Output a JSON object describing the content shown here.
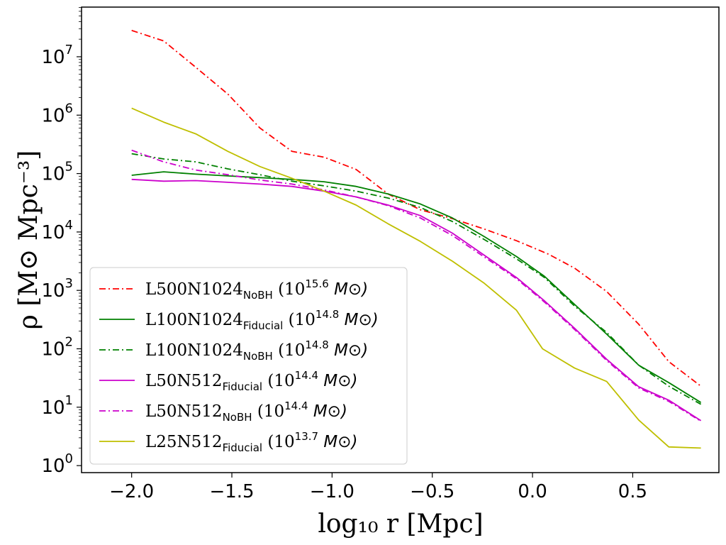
{
  "chart_data": {
    "type": "line",
    "xlabel": "log₁₀ r [Mpc]",
    "ylabel": "ρ [M⊙ Mpc⁻³]",
    "xlim": [
      -2.25,
      0.93
    ],
    "ylim_log10": [
      -0.12,
      7.85
    ],
    "yscale": "log",
    "x_ticks": [
      -2.0,
      -1.5,
      -1.0,
      -0.5,
      0.0,
      0.5
    ],
    "x_tick_labels": [
      "−2.0",
      "−1.5",
      "−1.0",
      "−0.5",
      "0.0",
      "0.5"
    ],
    "y_ticks_log10": [
      0,
      1,
      2,
      3,
      4,
      5,
      6,
      7
    ],
    "y_tick_labels": [
      {
        "base": "10",
        "exp": "0"
      },
      {
        "base": "10",
        "exp": "1"
      },
      {
        "base": "10",
        "exp": "2"
      },
      {
        "base": "10",
        "exp": "3"
      },
      {
        "base": "10",
        "exp": "4"
      },
      {
        "base": "10",
        "exp": "5"
      },
      {
        "base": "10",
        "exp": "6"
      },
      {
        "base": "10",
        "exp": "7"
      }
    ],
    "legend_position": "lower-left",
    "series": [
      {
        "id": "l500n1024-nobh",
        "label_main": "L500N1024",
        "label_sub": "NoBH",
        "label_mass_base": "(10",
        "label_mass_exp": "15.6",
        "label_unit": "M⊙)",
        "color": "#ff0000",
        "style": "dashdot",
        "x": [
          -2.0,
          -1.84,
          -1.68,
          -1.52,
          -1.36,
          -1.2,
          -1.04,
          -0.88,
          -0.72,
          -0.56,
          -0.4,
          -0.24,
          -0.08,
          0.08,
          0.21,
          0.37,
          0.53,
          0.68,
          0.84
        ],
        "log10_y": [
          7.45,
          7.27,
          6.82,
          6.36,
          5.78,
          5.38,
          5.28,
          5.07,
          4.65,
          4.38,
          4.23,
          4.05,
          3.85,
          3.62,
          3.38,
          2.98,
          2.42,
          1.78,
          1.36
        ]
      },
      {
        "id": "l100n1024-fiducial",
        "label_main": "L100N1024",
        "label_sub": "Fiducial",
        "label_mass_base": "(10",
        "label_mass_exp": "14.8",
        "label_unit": "M⊙)",
        "color": "#008000",
        "style": "solid",
        "x": [
          -2.0,
          -1.84,
          -1.68,
          -1.52,
          -1.36,
          -1.2,
          -1.04,
          -0.88,
          -0.72,
          -0.56,
          -0.4,
          -0.24,
          -0.08,
          0.06,
          0.21,
          0.37,
          0.53,
          0.68,
          0.84
        ],
        "log10_y": [
          4.97,
          5.03,
          4.99,
          4.96,
          4.93,
          4.9,
          4.86,
          4.78,
          4.65,
          4.48,
          4.24,
          3.92,
          3.58,
          3.24,
          2.76,
          2.25,
          1.72,
          1.42,
          1.08
        ]
      },
      {
        "id": "l100n1024-nobh",
        "label_main": "L100N1024",
        "label_sub": "NoBH",
        "label_mass_base": "(10",
        "label_mass_exp": "14.8",
        "label_unit": "M⊙)",
        "color": "#008000",
        "style": "dashdot",
        "x": [
          -2.0,
          -1.84,
          -1.68,
          -1.52,
          -1.36,
          -1.2,
          -1.04,
          -0.88,
          -0.72,
          -0.56,
          -0.4,
          -0.24,
          -0.08,
          0.06,
          0.21,
          0.37,
          0.53,
          0.68,
          0.84
        ],
        "log10_y": [
          5.34,
          5.25,
          5.2,
          5.08,
          4.98,
          4.87,
          4.79,
          4.7,
          4.58,
          4.42,
          4.18,
          3.87,
          3.54,
          3.22,
          2.73,
          2.28,
          1.72,
          1.36,
          1.05
        ]
      },
      {
        "id": "l50n512-fiducial",
        "label_main": "L50N512",
        "label_sub": "Fiducial",
        "label_mass_base": "(10",
        "label_mass_exp": "14.4",
        "label_unit": "M⊙)",
        "color": "#cc00cc",
        "style": "solid",
        "x": [
          -2.0,
          -1.84,
          -1.68,
          -1.52,
          -1.36,
          -1.2,
          -1.04,
          -0.88,
          -0.72,
          -0.56,
          -0.4,
          -0.24,
          -0.08,
          0.06,
          0.21,
          0.37,
          0.53,
          0.68,
          0.84
        ],
        "log10_y": [
          4.9,
          4.87,
          4.88,
          4.85,
          4.82,
          4.78,
          4.7,
          4.6,
          4.46,
          4.28,
          3.98,
          3.6,
          3.22,
          2.82,
          2.35,
          1.82,
          1.35,
          1.12,
          0.77
        ]
      },
      {
        "id": "l50n512-nobh",
        "label_main": "L50N512",
        "label_sub": "NoBH",
        "label_mass_base": "(10",
        "label_mass_exp": "14.4",
        "label_unit": "M⊙)",
        "color": "#cc00cc",
        "style": "dashdot",
        "x": [
          -2.0,
          -1.84,
          -1.68,
          -1.52,
          -1.36,
          -1.2,
          -1.04,
          -0.88,
          -0.72,
          -0.56,
          -0.4,
          -0.24,
          -0.08,
          0.06,
          0.21,
          0.37,
          0.53,
          0.68,
          0.84
        ],
        "log10_y": [
          5.4,
          5.2,
          5.06,
          4.98,
          4.89,
          4.82,
          4.72,
          4.6,
          4.45,
          4.24,
          3.94,
          3.57,
          3.2,
          2.8,
          2.33,
          1.8,
          1.33,
          1.1,
          0.76
        ]
      },
      {
        "id": "l25n512-fiducial",
        "label_main": "L25N512",
        "label_sub": "Fiducial",
        "label_mass_base": "(10",
        "label_mass_exp": "13.7",
        "label_unit": "M⊙)",
        "color": "#bfbf00",
        "style": "solid",
        "x": [
          -2.0,
          -1.84,
          -1.68,
          -1.52,
          -1.36,
          -1.2,
          -1.04,
          -0.88,
          -0.72,
          -0.56,
          -0.4,
          -0.24,
          -0.08,
          0.05,
          0.21,
          0.37,
          0.53,
          0.68,
          0.84
        ],
        "log10_y": [
          6.12,
          5.88,
          5.68,
          5.38,
          5.12,
          4.92,
          4.7,
          4.46,
          4.14,
          3.84,
          3.5,
          3.12,
          2.66,
          2.0,
          1.67,
          1.44,
          0.78,
          0.32,
          0.3
        ]
      }
    ]
  }
}
